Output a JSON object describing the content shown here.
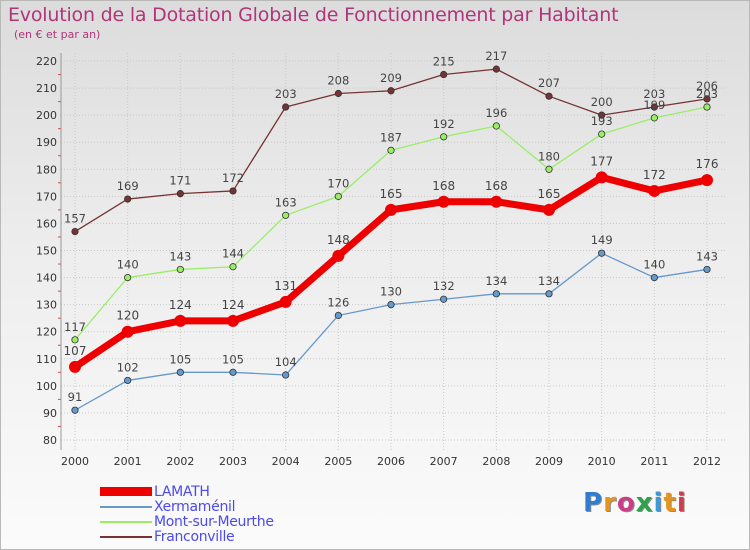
{
  "title": "Evolution de la Dotation Globale de Fonctionnement par Habitant",
  "subtitle": "(en € et par an)",
  "brand": {
    "text": "Proxiti",
    "letter_colors": [
      "#2f7dd1",
      "#e8941a",
      "#cc3d87",
      "#2ca34a",
      "#3d9ad9",
      "#e8941a",
      "#d03b4d"
    ]
  },
  "chart_data": {
    "type": "line",
    "x": [
      "2000",
      "2001",
      "2002",
      "2003",
      "2004",
      "2005",
      "2006",
      "2007",
      "2008",
      "2009",
      "2010",
      "2011",
      "2012"
    ],
    "ylim": [
      80,
      220
    ],
    "yticks": [
      80,
      90,
      100,
      110,
      120,
      130,
      140,
      150,
      160,
      170,
      180,
      190,
      200,
      210,
      220
    ],
    "grid": true,
    "legend_position": "bottom-left",
    "series": [
      {
        "name": "LAMATH",
        "color": "#ee0000",
        "values": [
          107,
          120,
          124,
          124,
          131,
          148,
          165,
          168,
          168,
          165,
          177,
          172,
          176
        ]
      },
      {
        "name": "Xermaménil",
        "color": "#6699cc",
        "values": [
          91,
          102,
          105,
          105,
          104,
          126,
          130,
          132,
          134,
          134,
          149,
          140,
          143
        ]
      },
      {
        "name": "Mont-sur-Meurthe",
        "color": "#99ee66",
        "values": [
          117,
          140,
          143,
          144,
          163,
          170,
          187,
          192,
          196,
          180,
          193,
          199,
          203
        ]
      },
      {
        "name": "Franconville",
        "color": "#773333",
        "values": [
          157,
          169,
          171,
          172,
          203,
          208,
          209,
          215,
          217,
          207,
          200,
          203,
          206
        ]
      }
    ]
  }
}
